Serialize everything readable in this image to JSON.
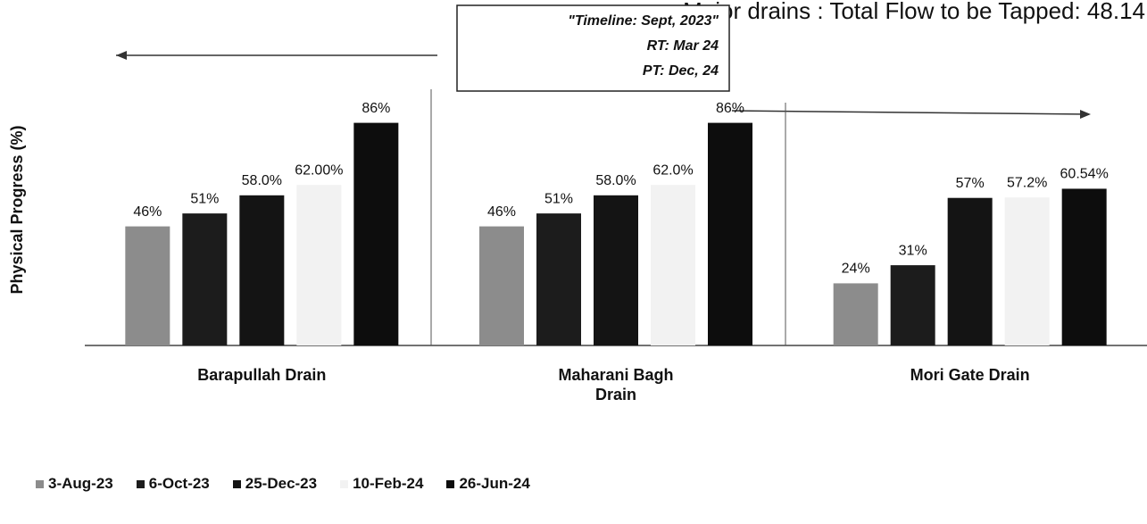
{
  "chart_data": {
    "type": "bar",
    "title": "Major drains : Total Flow to be Tapped: 48.14",
    "ylabel": "Physical Progress (%)",
    "annotations": [
      "\"Timeline: Sept, 2023\"",
      "RT: Mar 24",
      "PT: Dec, 24"
    ],
    "categories": [
      "Barapullah Drain",
      "Maharani Bagh Drain",
      "Mori Gate Drain"
    ],
    "ylim": [
      0,
      100
    ],
    "series": [
      {
        "name": "3-Aug-23",
        "color": "#8c8c8c",
        "values": [
          46,
          46,
          24
        ],
        "value_labels": [
          "46%",
          "46%",
          "24%"
        ]
      },
      {
        "name": "6-Oct-23",
        "color": "#1c1c1c",
        "values": [
          51,
          51,
          31
        ],
        "value_labels": [
          "51%",
          "51%",
          "31%"
        ]
      },
      {
        "name": "25-Dec-23",
        "color": "#141414",
        "values": [
          58.0,
          58.0,
          57
        ],
        "value_labels": [
          "58.0%",
          "58.0%",
          "57%"
        ]
      },
      {
        "name": "10-Feb-24",
        "color": "#f2f2f2",
        "values": [
          62.0,
          62.0,
          57.2
        ],
        "value_labels": [
          "62.00%",
          "62.0%",
          "57.2%"
        ]
      },
      {
        "name": "26-Jun-24",
        "color": "#0d0d0d",
        "values": [
          86,
          86,
          60.54
        ],
        "value_labels": [
          "86%",
          "86%",
          "60.54%"
        ]
      }
    ]
  }
}
